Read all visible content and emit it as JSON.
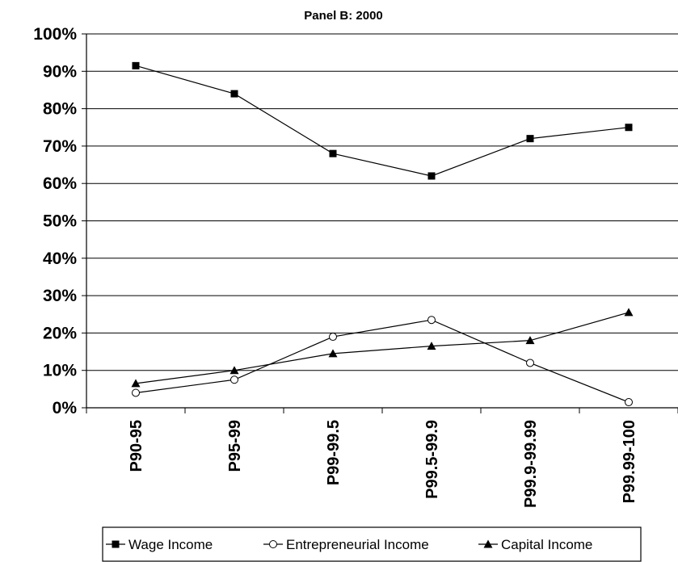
{
  "chart_data": {
    "type": "line",
    "title": "Panel B: 2000",
    "xlabel": "",
    "ylabel": "",
    "categories": [
      "P90-95",
      "P95-99",
      "P99-99.5",
      "P99.5-99.9",
      "P99.9-99.99",
      "P99.99-100"
    ],
    "ylim": [
      0,
      100
    ],
    "ytick_labels": [
      "0%",
      "10%",
      "20%",
      "30%",
      "40%",
      "50%",
      "60%",
      "70%",
      "80%",
      "90%",
      "100%"
    ],
    "grid": true,
    "legend_position": "bottom",
    "series": [
      {
        "name": "Wage Income",
        "marker": "filled-square",
        "color": "#000000",
        "values": [
          91.5,
          84,
          68,
          62,
          72,
          75
        ]
      },
      {
        "name": "Entrepreneurial Income",
        "marker": "open-circle",
        "color": "#000000",
        "values": [
          4,
          7.5,
          19,
          23.5,
          12,
          1.5
        ]
      },
      {
        "name": "Capital Income",
        "marker": "filled-triangle",
        "color": "#000000",
        "values": [
          6.5,
          10,
          14.5,
          16.5,
          18,
          25.5
        ]
      }
    ]
  }
}
